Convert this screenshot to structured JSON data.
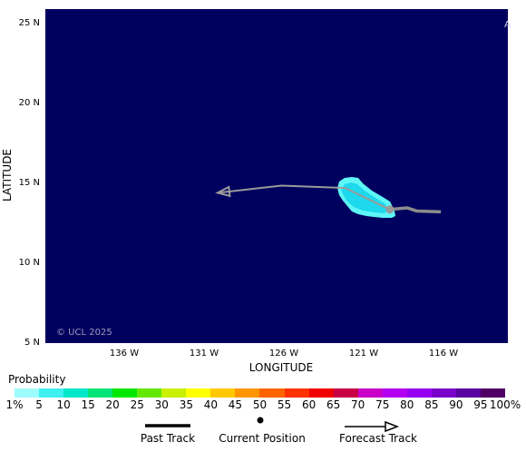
{
  "axes": {
    "x_title": "LONGITUDE",
    "y_title": "LATITUDE",
    "lat_ticks": [
      "25 N",
      "20 N",
      "15 N",
      "10 N",
      "5 N"
    ],
    "lon_ticks": [
      "136 W",
      "131 W",
      "126 W",
      "121 W",
      "116 W"
    ]
  },
  "map": {
    "background_color": "#00005f",
    "copyright": "© UCL 2025",
    "corner_marker": "A",
    "lat_range": [
      5,
      26
    ],
    "lon_range": [
      -140.8,
      -111.8
    ],
    "current_position": {
      "lat": 13.4,
      "lon": -119.2
    },
    "past_track": [
      {
        "lat": 13.4,
        "lon": -119.2
      },
      {
        "lat": 13.5,
        "lon": -118.1
      },
      {
        "lat": 13.3,
        "lon": -117.5
      },
      {
        "lat": 13.25,
        "lon": -116.0
      }
    ],
    "forecast_track": [
      {
        "lat": 13.4,
        "lon": -119.2
      },
      {
        "lat": 14.75,
        "lon": -122.0
      },
      {
        "lat": 14.9,
        "lon": -126.0
      },
      {
        "lat": 14.45,
        "lon": -130.0
      }
    ],
    "probability_region_color": "#5ef6f6",
    "probability_region_core_color": "#1ed8ee"
  },
  "legend": {
    "title": "Probability",
    "colors": [
      "#9ffcfc",
      "#3ff0f0",
      "#00e8c8",
      "#00e478",
      "#00e800",
      "#64e800",
      "#c8f000",
      "#ffff00",
      "#ffc800",
      "#ff9600",
      "#ff6400",
      "#ff3200",
      "#f00000",
      "#c80046",
      "#c800c8",
      "#b400f0",
      "#9600f0",
      "#7800c8",
      "#5a00a0",
      "#500064"
    ],
    "ticks": [
      "1%",
      "5",
      "10",
      "15",
      "20",
      "25",
      "30",
      "35",
      "40",
      "45",
      "50",
      "55",
      "60",
      "65",
      "70",
      "75",
      "80",
      "85",
      "90",
      "95",
      "100%"
    ],
    "past_track_label": "Past Track",
    "current_position_label": "Current Position",
    "forecast_track_label": "Forecast Track"
  }
}
